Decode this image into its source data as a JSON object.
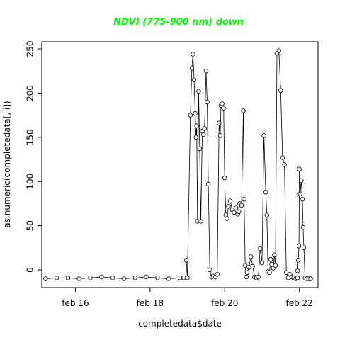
{
  "chart_data": {
    "type": "line",
    "title": "NDVI (775-900 nm) down",
    "title_color": "#00ff00",
    "xlabel": "completedata$date",
    "ylabel": "as.numeric(completedata[, i])",
    "x_ticks": [
      "feb 16",
      "feb 18",
      "feb 20",
      "feb 22"
    ],
    "x_tick_values": [
      16,
      18,
      20,
      22
    ],
    "y_ticks": [
      0,
      50,
      100,
      150,
      200,
      250
    ],
    "xlim": [
      15.1,
      22.5
    ],
    "ylim": [
      -20,
      258
    ],
    "line_color": "#000000",
    "marker": "open-circle",
    "grid": false,
    "legend": "none",
    "segments": [
      {
        "x": [
          15.2,
          15.5,
          15.8,
          16.1,
          16.4,
          16.7,
          17.0,
          17.3,
          17.6,
          17.9,
          18.2,
          18.5,
          18.8,
          18.9
        ],
        "y": [
          -10,
          -9,
          -9,
          -10,
          -9,
          -8,
          -9,
          -10,
          -9,
          -8,
          -9,
          -10,
          -9,
          -9
        ]
      },
      {
        "x": [
          18.97,
          19.0,
          19.08,
          19.12,
          19.15,
          19.18,
          19.21,
          19.23,
          19.25,
          19.27,
          19.3,
          19.33,
          19.36,
          19.4,
          19.43,
          19.46,
          19.5,
          19.53,
          19.56,
          19.6,
          19.65,
          19.7,
          19.75,
          19.8,
          19.85
        ],
        "y": [
          11,
          -9,
          175,
          228,
          244,
          215,
          177,
          150,
          163,
          55,
          202,
          137,
          55,
          157,
          153,
          160,
          225,
          190,
          97,
          0,
          -8,
          -7,
          -8,
          -5,
          166
        ]
      },
      {
        "x": [
          19.85,
          19.88,
          19.9,
          19.93,
          19.97,
          20.0,
          20.03,
          20.06,
          20.1,
          20.15,
          20.2,
          20.25,
          20.3,
          20.35,
          20.38,
          20.4,
          20.45,
          20.5
        ],
        "y": [
          166,
          152,
          186,
          188,
          183,
          104,
          62,
          58,
          72,
          78,
          68,
          65,
          70,
          63,
          66,
          75,
          73,
          180
        ]
      },
      {
        "x": [
          20.5,
          20.52,
          20.55,
          20.58,
          20.6,
          20.65,
          20.7,
          20.75,
          20.8,
          20.85,
          20.9,
          20.95,
          21.0,
          21.05,
          21.1
        ],
        "y": [
          180,
          80,
          5,
          -8,
          -3,
          3,
          15,
          4,
          -8,
          -9,
          -8,
          24,
          8,
          152,
          88
        ]
      },
      {
        "x": [
          21.1,
          21.13,
          21.16,
          21.2,
          21.23,
          21.26,
          21.3,
          21.33,
          21.36,
          21.4,
          21.45,
          21.5,
          21.55,
          21.6,
          21.65,
          21.7,
          21.75,
          21.8,
          21.85,
          21.9,
          21.95
        ],
        "y": [
          88,
          62,
          -2,
          -3,
          12,
          6,
          2,
          17,
          5,
          245,
          248,
          203,
          127,
          119,
          -3,
          -9,
          -5,
          -8,
          -9,
          -10,
          -9
        ]
      },
      {
        "x": [
          21.95,
          21.97,
          21.99,
          22.0,
          22.02,
          22.05,
          22.08,
          22.1,
          22.12,
          22.15,
          22.2,
          22.25,
          22.3
        ],
        "y": [
          -1,
          11,
          27,
          114,
          86,
          101,
          80,
          48,
          25,
          -9,
          -10,
          -10,
          -10
        ]
      }
    ]
  }
}
